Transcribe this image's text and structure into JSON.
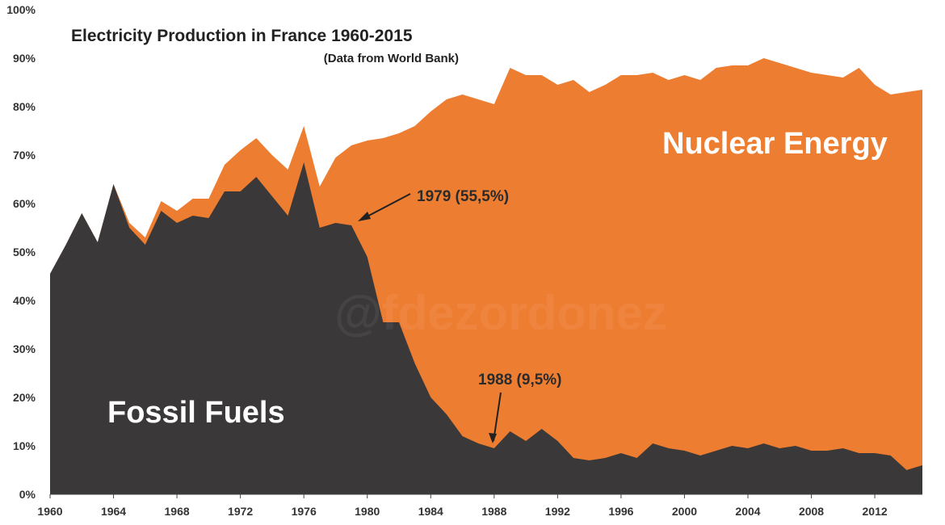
{
  "chart_data": {
    "type": "area",
    "title": "Electricity Production in France 1960-2015",
    "subtitle": "(Data from World Bank)",
    "watermark": "@fdezordonez",
    "x": [
      1960,
      1961,
      1962,
      1963,
      1964,
      1965,
      1966,
      1967,
      1968,
      1969,
      1970,
      1971,
      1972,
      1973,
      1974,
      1975,
      1976,
      1977,
      1978,
      1979,
      1980,
      1981,
      1982,
      1983,
      1984,
      1985,
      1986,
      1987,
      1988,
      1989,
      1990,
      1991,
      1992,
      1993,
      1994,
      1995,
      1996,
      1997,
      1998,
      1999,
      2000,
      2001,
      2002,
      2003,
      2004,
      2005,
      2006,
      2007,
      2008,
      2009,
      2010,
      2011,
      2012,
      2013,
      2014,
      2015
    ],
    "series": [
      {
        "name": "Fossil Fuels",
        "color": "#3a3838",
        "values": [
          45.5,
          51.5,
          58,
          52,
          64,
          55,
          51.5,
          58.5,
          56,
          57.5,
          57,
          62.5,
          62.5,
          65.5,
          61.5,
          57.5,
          68.5,
          55,
          56,
          55.5,
          49,
          35.5,
          35.5,
          27,
          20,
          16.5,
          12,
          10.5,
          9.5,
          13,
          11,
          13.5,
          11,
          7.5,
          7,
          7.5,
          8.5,
          7.5,
          10.5,
          9.5,
          9,
          8,
          9,
          10,
          9.5,
          10.5,
          9.5,
          10,
          9,
          9,
          9.5,
          8.5,
          8.5,
          8,
          5,
          6
        ]
      },
      {
        "name": "Nuclear Energy",
        "color": "#ed7d31",
        "values_total_stacked": [
          45.5,
          51.5,
          58,
          52,
          64,
          56,
          53,
          60.5,
          58.5,
          61,
          61,
          68,
          71,
          73.5,
          70,
          67,
          76,
          63.5,
          69.5,
          72,
          73,
          73.5,
          74.5,
          76,
          79,
          81.5,
          82.5,
          81.5,
          80.5,
          88,
          86.5,
          86.5,
          84.5,
          85.5,
          83,
          84.5,
          86.5,
          86.5,
          87,
          85.5,
          86.5,
          85.5,
          88,
          88.5,
          88.5,
          90,
          89,
          88,
          87,
          86.5,
          86,
          88,
          84.5,
          82.5,
          83,
          83.5
        ]
      }
    ],
    "xlabel": "",
    "ylabel": "",
    "ylim": [
      0,
      100
    ],
    "xlim": [
      1960,
      2015
    ],
    "y_ticks": [
      "0%",
      "10%",
      "20%",
      "30%",
      "40%",
      "50%",
      "60%",
      "70%",
      "80%",
      "90%",
      "100%"
    ],
    "x_ticks": [
      "1960",
      "1964",
      "1968",
      "1972",
      "1976",
      "1980",
      "1984",
      "1988",
      "1992",
      "1996",
      "2000",
      "2004",
      "2008",
      "2012"
    ],
    "series_labels": {
      "fossil": "Fossil Fuels",
      "nuclear": "Nuclear Energy"
    },
    "annotations": [
      {
        "text": "1979 (55,5%)",
        "x": 1979,
        "y": 55.5
      },
      {
        "text": "1988 (9,5%)",
        "x": 1988,
        "y": 9.5
      }
    ],
    "grid": false,
    "legend": "none"
  }
}
